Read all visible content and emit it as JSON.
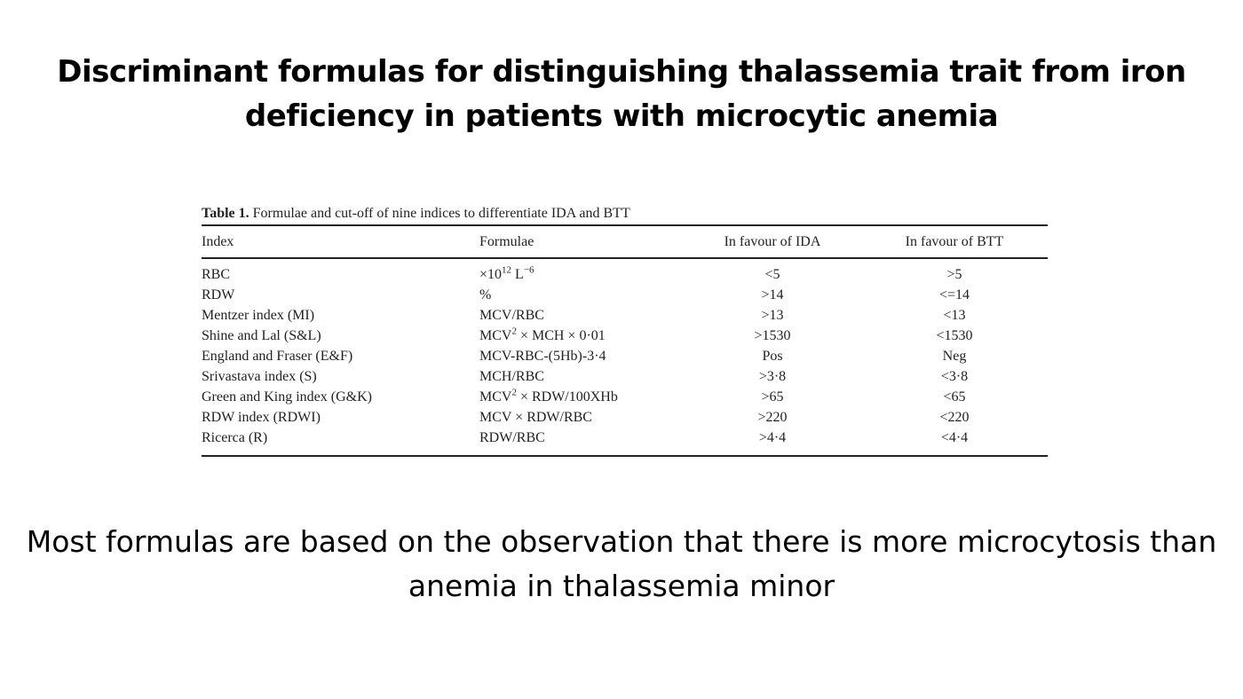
{
  "title": "Discriminant formulas for distinguishing thalassemia trait from iron deficiency in patients with microcytic anemia",
  "table": {
    "caption_label": "Table 1.",
    "caption_text": "Formulae and cut-off of nine indices to differentiate IDA and BTT",
    "headers": [
      "Index",
      "Formulae",
      "In favour of IDA",
      "In favour of BTT"
    ],
    "rows": [
      {
        "index": "RBC",
        "formula": {
          "pre": "×10",
          "sup": "12",
          "post": " L",
          "sup2": "−6"
        },
        "ida": "<5",
        "btt": ">5"
      },
      {
        "index": "RDW",
        "formula": {
          "pre": "%"
        },
        "ida": ">14",
        "btt": "<=14"
      },
      {
        "index": "Mentzer index (MI)",
        "formula": {
          "pre": "MCV/RBC"
        },
        "ida": ">13",
        "btt": "<13"
      },
      {
        "index": "Shine and Lal (S&L)",
        "formula": {
          "pre": "MCV",
          "sup": "2",
          "post": " × MCH × 0·01"
        },
        "ida": ">1530",
        "btt": "<1530"
      },
      {
        "index": "England and Fraser (E&F)",
        "formula": {
          "pre": "MCV-RBC-(5Hb)-3·4"
        },
        "ida": "Pos",
        "btt": "Neg"
      },
      {
        "index": "Srivastava index (S)",
        "formula": {
          "pre": "MCH/RBC"
        },
        "ida": ">3·8",
        "btt": "<3·8"
      },
      {
        "index": "Green and King index (G&K)",
        "formula": {
          "pre": "MCV",
          "sup": "2",
          "post": " × RDW/100XHb"
        },
        "ida": ">65",
        "btt": "<65"
      },
      {
        "index": "RDW index (RDWI)",
        "formula": {
          "pre": "MCV × RDW/RBC"
        },
        "ida": ">220",
        "btt": "<220"
      },
      {
        "index": "Ricerca (R)",
        "formula": {
          "pre": "RDW/RBC"
        },
        "ida": ">4·4",
        "btt": "<4·4"
      }
    ]
  },
  "footer": "Most formulas are based on the observation that there is more microcytosis than anemia in thalassemia minor"
}
